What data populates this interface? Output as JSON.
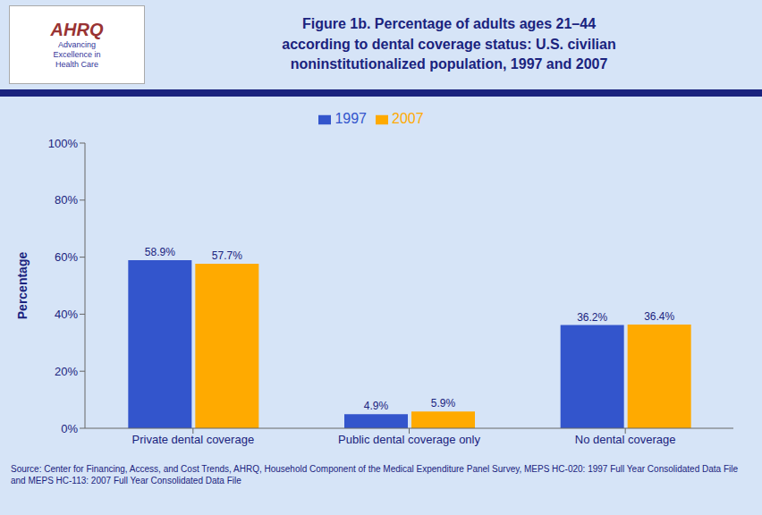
{
  "chart_data": {
    "type": "bar",
    "title": "Figure 1b. Percentage of adults ages 21–44\naccording to dental coverage status: U.S. civilian\nnoninstitutionalized population, 1997 and 2007",
    "categories": [
      "Private dental coverage",
      "Public dental coverage only",
      "No dental coverage"
    ],
    "series": [
      {
        "name": "1997",
        "color": "#3355CC",
        "values": [
          58.9,
          4.9,
          36.2
        ],
        "value_labels": [
          "58.9%",
          "4.9%",
          "36.2%"
        ]
      },
      {
        "name": "2007",
        "color": "#FFAA00",
        "values": [
          57.7,
          5.9,
          36.4
        ],
        "value_labels": [
          "57.7%",
          "5.9%",
          "36.4%"
        ]
      }
    ],
    "y_label": "Percentage",
    "ylim": [
      0,
      100
    ],
    "yticks": [
      {
        "value": 0,
        "label": "0%"
      },
      {
        "value": 20,
        "label": "20%"
      },
      {
        "value": 40,
        "label": "40%"
      },
      {
        "value": 60,
        "label": "60%"
      },
      {
        "value": 80,
        "label": "80%"
      },
      {
        "value": 100,
        "label": "100%"
      }
    ],
    "grid": false,
    "legend": "top",
    "data_labels": true,
    "annotations": [
      "Source: Center for Financing, Access, and Cost Trends, AHRQ, Household Component of the Medical Expenditure Panel Survey, MEPS HC-020: 1997 Full Year Consolidated Data File and MEPS HC-113: 2007 Full Year Consolidated Data File",
      "AHRQ",
      "Advancing\nExcellence in\nHealth Care"
    ]
  }
}
